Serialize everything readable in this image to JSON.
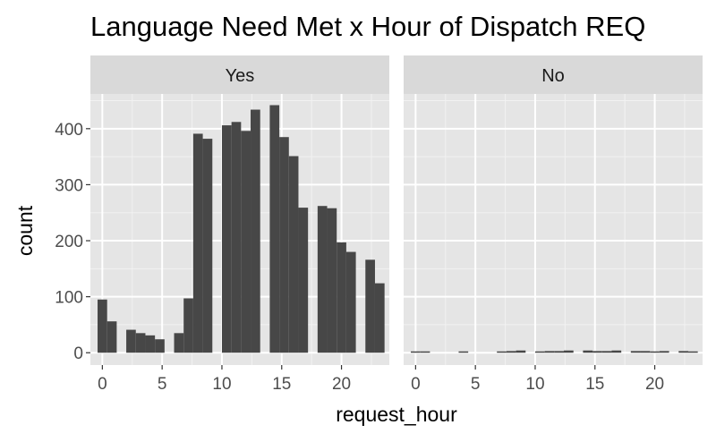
{
  "chart_data": {
    "type": "bar",
    "title": "Language Need Met x Hour of Dispatch REQ",
    "xlabel": "request_hour",
    "ylabel": "count",
    "facet_strips": [
      "Yes",
      "No"
    ],
    "x_ticks": [
      0,
      5,
      10,
      15,
      20
    ],
    "y_ticks": [
      0,
      100,
      200,
      300,
      400
    ],
    "xlim": [
      -1,
      24
    ],
    "ylim": [
      -22,
      462
    ],
    "grid": true,
    "bar_color": "#474747",
    "panel_bg": "#e5e5e5",
    "strip_bg": "#d9d9d9",
    "x": [
      0,
      0.8,
      2.4,
      3.2,
      4,
      4.8,
      6.4,
      7.2,
      8,
      8.8,
      10.4,
      11.2,
      12,
      12.8,
      14.4,
      15.2,
      16,
      16.8,
      18.4,
      19.2,
      20,
      20.8,
      22.4,
      23.2
    ],
    "series": [
      {
        "facet": "Yes",
        "values": [
          95,
          56,
          41,
          35,
          31,
          24,
          35,
          97,
          391,
          382,
          406,
          412,
          396,
          434,
          442,
          385,
          351,
          259,
          262,
          258,
          197,
          180,
          166,
          124
        ]
      },
      {
        "facet": "No",
        "values": [
          1,
          1,
          0,
          0,
          1,
          0,
          0,
          2,
          3,
          4,
          2,
          3,
          3,
          4,
          4,
          3,
          3,
          4,
          3,
          3,
          2,
          3,
          3,
          2
        ]
      }
    ]
  }
}
